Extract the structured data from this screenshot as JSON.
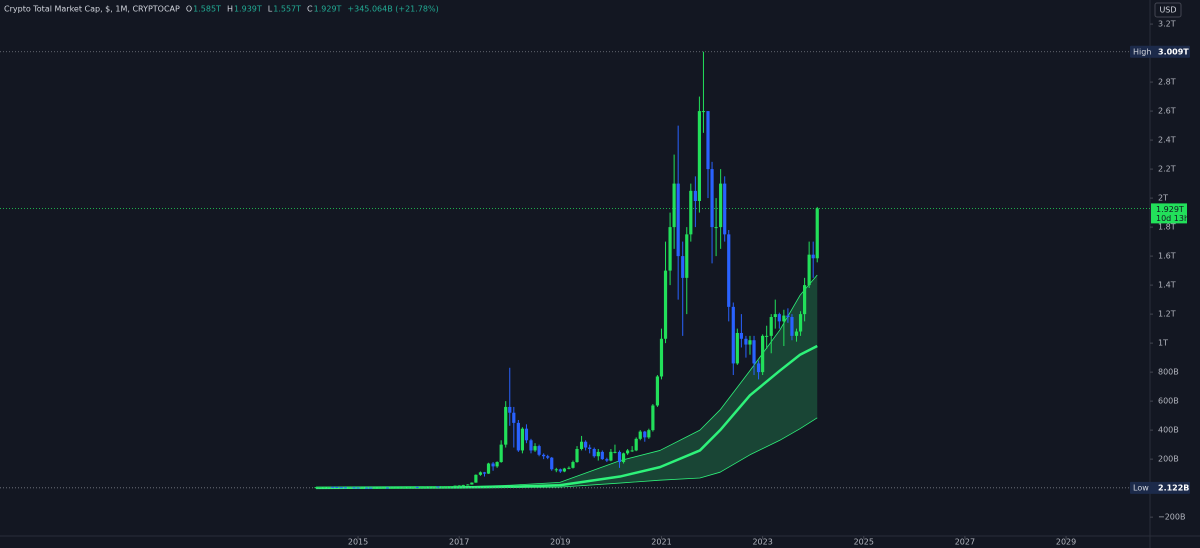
{
  "chart_data": {
    "type": "candlestick",
    "title": "Crypto Total Market Cap, $, 1M, CRYPTOCAP",
    "header_ohlc": [
      {
        "key": "O",
        "label": "1.585T"
      },
      {
        "key": "H",
        "label": "1.939T"
      },
      {
        "key": "L",
        "label": "1.557T"
      },
      {
        "key": "C",
        "label": "1.929T"
      }
    ],
    "header_change": "+345.064B (+21.78%)",
    "currency": "USD",
    "up_color": "#22e05a",
    "down_color": "#2962ff",
    "x": [
      2014.17,
      2014.25,
      2014.33,
      2014.42,
      2014.5,
      2014.58,
      2014.67,
      2014.75,
      2014.83,
      2014.92,
      2015,
      2015.08,
      2015.17,
      2015.25,
      2015.33,
      2015.42,
      2015.5,
      2015.58,
      2015.67,
      2015.75,
      2015.83,
      2015.92,
      2016,
      2016.08,
      2016.17,
      2016.25,
      2016.33,
      2016.42,
      2016.5,
      2016.58,
      2016.67,
      2016.75,
      2016.83,
      2016.92,
      2017,
      2017.08,
      2017.17,
      2017.25,
      2017.33,
      2017.42,
      2017.5,
      2017.58,
      2017.67,
      2017.75,
      2017.83,
      2017.92,
      2018,
      2018.08,
      2018.17,
      2018.25,
      2018.33,
      2018.42,
      2018.5,
      2018.58,
      2018.67,
      2018.75,
      2018.83,
      2018.92,
      2019,
      2019.08,
      2019.17,
      2019.25,
      2019.33,
      2019.42,
      2019.5,
      2019.58,
      2019.67,
      2019.75,
      2019.83,
      2019.92,
      2020,
      2020.08,
      2020.17,
      2020.25,
      2020.33,
      2020.42,
      2020.5,
      2020.58,
      2020.67,
      2020.75,
      2020.83,
      2020.92,
      2021,
      2021.08,
      2021.17,
      2021.25,
      2021.33,
      2021.42,
      2021.5,
      2021.58,
      2021.67,
      2021.75,
      2021.83,
      2021.92,
      2022,
      2022.08,
      2022.17,
      2022.25,
      2022.33,
      2022.42,
      2022.5,
      2022.58,
      2022.67,
      2022.75,
      2022.83,
      2022.92,
      2023,
      2023.08,
      2023.17,
      2023.25,
      2023.33,
      2023.42,
      2023.5,
      2023.58,
      2023.67,
      2023.75,
      2023.83,
      2023.92,
      2024,
      2024.08
    ],
    "open": [
      6,
      7,
      7.5,
      9,
      9,
      8.5,
      6.5,
      5.5,
      4.8,
      5.5,
      4.5,
      3.5,
      3.8,
      3.6,
      3.4,
      3.4,
      3.8,
      4.3,
      3.7,
      3.8,
      4.8,
      5.7,
      6.8,
      7,
      8.6,
      8.1,
      8.4,
      9.8,
      11.5,
      11.6,
      10.6,
      11,
      11.9,
      12.9,
      17.7,
      19,
      22,
      25,
      38,
      92,
      109,
      100,
      170,
      150,
      180,
      300,
      560,
      520,
      450,
      260,
      410,
      330,
      260,
      290,
      230,
      220,
      210,
      130,
      130,
      115,
      135,
      140,
      180,
      270,
      320,
      280,
      270,
      220,
      250,
      200,
      190,
      250,
      250,
      180,
      240,
      260,
      260,
      340,
      390,
      350,
      400,
      570,
      770,
      1030,
      1500,
      1800,
      2100,
      1600,
      1450,
      1750,
      2050,
      1980,
      2600,
      2600,
      2200,
      1800,
      1800,
      2100,
      1750,
      1250,
      860,
      1070,
      1030,
      990,
      1020,
      860,
      800,
      1050,
      1050,
      1180,
      1200,
      1150,
      1190,
      1180,
      1050,
      1080,
      1200,
      1400,
      1610,
      1585
    ],
    "high": [
      8,
      9,
      10,
      10,
      9.5,
      9,
      7,
      6,
      6,
      6,
      4.8,
      4.2,
      4,
      3.9,
      3.7,
      4,
      4.5,
      4.4,
      4,
      5,
      6.5,
      7.2,
      7.5,
      9,
      9,
      8.8,
      10,
      12.5,
      12,
      12,
      11.5,
      12.2,
      13.2,
      18,
      20,
      23,
      28,
      40,
      95,
      115,
      112,
      175,
      180,
      185,
      330,
      600,
      830,
      560,
      470,
      420,
      440,
      340,
      310,
      300,
      240,
      230,
      215,
      140,
      135,
      140,
      150,
      190,
      290,
      360,
      330,
      300,
      280,
      270,
      260,
      210,
      270,
      300,
      260,
      245,
      270,
      290,
      350,
      400,
      395,
      410,
      580,
      780,
      1100,
      1700,
      1900,
      2300,
      2500,
      1700,
      1800,
      2100,
      2150,
      2700,
      3009,
      2600,
      2250,
      2000,
      2200,
      2150,
      1780,
      1280,
      1100,
      1200,
      1050,
      1050,
      1050,
      880,
      1060,
      1120,
      1200,
      1300,
      1210,
      1230,
      1240,
      1200,
      1100,
      1220,
      1450,
      1700,
      1700,
      1939
    ],
    "low": [
      5.5,
      6,
      7,
      8.5,
      8,
      6,
      5,
      4.5,
      4.5,
      4.3,
      3,
      3.2,
      3.4,
      3.3,
      3.2,
      3.3,
      3.8,
      3.5,
      3.6,
      3.7,
      4.6,
      5.4,
      6.5,
      6.8,
      7.8,
      8,
      8.2,
      9.5,
      10.5,
      10.2,
      10.5,
      10.8,
      11.8,
      12.7,
      17,
      18,
      21,
      24,
      37,
      85,
      80,
      98,
      120,
      140,
      175,
      280,
      430,
      280,
      250,
      240,
      310,
      240,
      250,
      220,
      200,
      200,
      120,
      110,
      105,
      110,
      130,
      135,
      175,
      260,
      260,
      240,
      210,
      190,
      195,
      180,
      185,
      240,
      140,
      170,
      230,
      250,
      255,
      330,
      320,
      340,
      390,
      560,
      750,
      1000,
      1400,
      1650,
      1300,
      1050,
      1200,
      1700,
      1800,
      1900,
      2450,
      2000,
      1550,
      1600,
      1650,
      1700,
      1150,
      780,
      850,
      970,
      900,
      920,
      780,
      750,
      780,
      960,
      930,
      1100,
      1100,
      980,
      1140,
      1020,
      1010,
      1050,
      1150,
      1380,
      1450,
      1557
    ],
    "close": [
      7,
      7.5,
      9,
      9,
      8.5,
      6.5,
      5.5,
      4.8,
      5.5,
      4.5,
      3.5,
      3.8,
      3.6,
      3.4,
      3.4,
      3.8,
      4.3,
      3.7,
      3.8,
      4.8,
      5.7,
      6.8,
      7,
      8.6,
      8.1,
      8.4,
      9.8,
      11.5,
      11.6,
      10.6,
      11,
      11.9,
      12.9,
      17.7,
      19,
      22,
      25,
      38,
      92,
      109,
      100,
      170,
      150,
      180,
      300,
      560,
      520,
      450,
      260,
      410,
      330,
      260,
      290,
      230,
      220,
      210,
      130,
      130,
      115,
      135,
      140,
      180,
      270,
      320,
      280,
      270,
      220,
      250,
      200,
      190,
      250,
      250,
      180,
      240,
      260,
      260,
      340,
      390,
      350,
      400,
      570,
      770,
      1030,
      1500,
      1800,
      2100,
      1600,
      1450,
      1750,
      2050,
      1980,
      2600,
      2600,
      2200,
      1800,
      1800,
      2100,
      1750,
      1250,
      860,
      1070,
      1030,
      990,
      1020,
      860,
      800,
      1050,
      1050,
      1180,
      1200,
      1150,
      1190,
      1180,
      1050,
      1080,
      1200,
      1400,
      1610,
      1585,
      1929
    ],
    "bands": {
      "x": [
        2014.17,
        2017,
        2018,
        2018.99,
        2020.18,
        2020.97,
        2021.76,
        2022.16,
        2022.75,
        2023.34,
        2023.74,
        2024.08
      ],
      "mid": [
        2,
        5,
        10,
        20,
        80,
        145,
        260,
        400,
        640,
        810,
        920,
        980
      ],
      "upper": [
        3,
        9,
        20,
        40,
        190,
        260,
        400,
        540,
        810,
        1090,
        1330,
        1470
      ],
      "lower": [
        1,
        2,
        4,
        7,
        35,
        55,
        70,
        110,
        230,
        330,
        410,
        485
      ],
      "mid_color": "#2ef27a",
      "fill_color": "#1f6b45"
    },
    "high_marker": {
      "name": "High",
      "value": 3009,
      "label": "3.009T"
    },
    "low_marker": {
      "name": "Low",
      "value": 2.122,
      "label": "2.122B"
    },
    "price_line": {
      "value": 1929,
      "label": "1.929T",
      "countdown": "10d 13h"
    },
    "xlim": [
      2007.92,
      2030.66
    ],
    "xticks": [
      2015,
      2017,
      2019,
      2021,
      2023,
      2025,
      2027,
      2029
    ],
    "ylim": [
      -330,
      3366
    ],
    "yticks": [
      {
        "value": -200,
        "label": "−200B"
      },
      {
        "value": 200,
        "label": "200B"
      },
      {
        "value": 400,
        "label": "400B"
      },
      {
        "value": 600,
        "label": "600B"
      },
      {
        "value": 800,
        "label": "800B"
      },
      {
        "value": 1000,
        "label": "1T"
      },
      {
        "value": 1200,
        "label": "1.2T"
      },
      {
        "value": 1400,
        "label": "1.4T"
      },
      {
        "value": 1600,
        "label": "1.6T"
      },
      {
        "value": 1800,
        "label": "1.8T"
      },
      {
        "value": 2000,
        "label": "2T"
      },
      {
        "value": 2200,
        "label": "2.2T"
      },
      {
        "value": 2400,
        "label": "2.4T"
      },
      {
        "value": 2600,
        "label": "2.6T"
      },
      {
        "value": 2800,
        "label": "2.8T"
      },
      {
        "value": 3200,
        "label": "3.2T"
      }
    ]
  }
}
